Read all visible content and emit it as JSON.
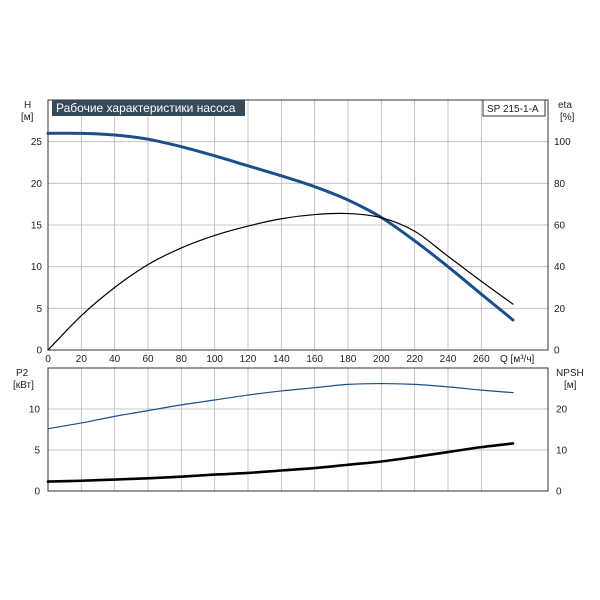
{
  "chart_data": [
    {
      "type": "line",
      "title": "Рабочие характеристики насоса",
      "model_label": "SP 215-1-A",
      "x_label": "Q [м³/ч]",
      "y_left_label": "H",
      "y_left_unit": "[м]",
      "y_right_label": "eta",
      "y_right_unit": "[%]",
      "xlim": [
        0,
        300
      ],
      "ylim_left": [
        0,
        30
      ],
      "ylim_right": [
        0,
        120
      ],
      "x_ticks": [
        0,
        20,
        40,
        60,
        80,
        100,
        120,
        140,
        160,
        180,
        200,
        220,
        240,
        260
      ],
      "y_left_ticks": [
        0,
        5,
        10,
        15,
        20,
        25
      ],
      "y_right_ticks": [
        0,
        20,
        40,
        60,
        80,
        100
      ],
      "grid": true,
      "series": [
        {
          "axis": "left",
          "color": "#1b4f8a",
          "x": [
            0,
            20,
            40,
            60,
            80,
            100,
            120,
            140,
            160,
            180,
            200,
            220,
            240,
            260,
            279
          ],
          "values": [
            26.0,
            26.0,
            25.8,
            25.3,
            24.4,
            23.3,
            22.1,
            20.9,
            19.6,
            18.0,
            15.9,
            13.1,
            10.0,
            6.7,
            3.6
          ]
        },
        {
          "axis": "right",
          "color": "#000000",
          "x": [
            0,
            20,
            40,
            60,
            80,
            100,
            120,
            140,
            160,
            180,
            200,
            220,
            240,
            260,
            279
          ],
          "values": [
            0,
            16.5,
            30,
            41,
            49,
            55,
            59.5,
            63,
            65,
            65.5,
            63.5,
            57,
            45,
            33,
            22
          ]
        }
      ]
    },
    {
      "type": "line",
      "x_label": "",
      "y_left_label": "P2",
      "y_left_unit": "[кВт]",
      "y_right_label": "NPSH",
      "y_right_unit": "[м]",
      "xlim": [
        0,
        300
      ],
      "ylim_left": [
        0,
        15
      ],
      "ylim_right": [
        0,
        30
      ],
      "y_left_ticks": [
        0,
        5,
        10
      ],
      "y_right_ticks": [
        0,
        10,
        20
      ],
      "grid": true,
      "series": [
        {
          "axis": "left",
          "color": "#1b4f8a",
          "x": [
            0,
            20,
            40,
            60,
            80,
            100,
            120,
            140,
            160,
            180,
            200,
            220,
            240,
            260,
            279
          ],
          "values": [
            7.6,
            8.3,
            9.1,
            9.8,
            10.5,
            11.1,
            11.7,
            12.2,
            12.6,
            13.0,
            13.1,
            13.0,
            12.7,
            12.3,
            12.0
          ]
        },
        {
          "axis": "right",
          "color": "#000000",
          "x": [
            0,
            20,
            40,
            60,
            80,
            100,
            120,
            140,
            160,
            180,
            200,
            220,
            240,
            260,
            279
          ],
          "values": [
            2.3,
            2.5,
            2.8,
            3.1,
            3.5,
            4.0,
            4.4,
            5.0,
            5.6,
            6.4,
            7.2,
            8.3,
            9.5,
            10.7,
            11.6
          ]
        }
      ]
    }
  ]
}
